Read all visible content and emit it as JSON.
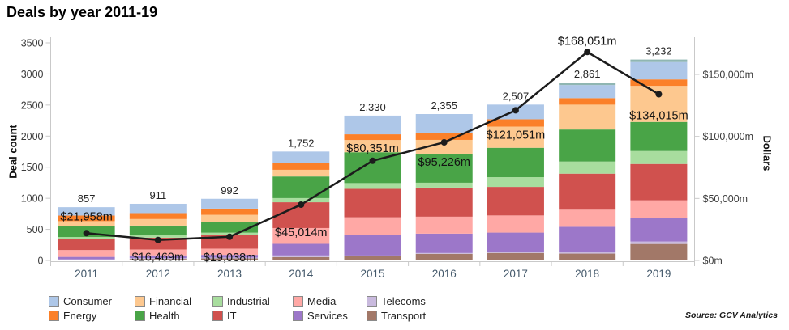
{
  "title": "Deals by year 2011-19",
  "source": "Source: GCV Analytics",
  "axes": {
    "left": {
      "label": "Deal count",
      "tick_values": [
        0,
        500,
        1000,
        1500,
        2000,
        2500,
        3000,
        3500
      ],
      "tick_labels": [
        "0",
        "500",
        "1000",
        "1500",
        "2000",
        "2500",
        "3000",
        "3500"
      ],
      "max": 3500
    },
    "right": {
      "label": "Dollars",
      "tick_values": [
        0,
        50000,
        100000,
        150000
      ],
      "tick_labels": [
        "$0m",
        "$50,000m",
        "$100,000m",
        "$150,000m"
      ],
      "max": 150000
    },
    "x": {
      "labels": [
        "2011",
        "2012",
        "2013",
        "2014",
        "2015",
        "2016",
        "2017",
        "2018",
        "2019"
      ]
    }
  },
  "legend": {
    "items": [
      {
        "label": "Consumer",
        "color": "#aec7e8"
      },
      {
        "label": "Energy",
        "color": "#fb8029"
      },
      {
        "label": "Financial",
        "color": "#fdc88f"
      },
      {
        "label": "Health",
        "color": "#49a447"
      },
      {
        "label": "Industrial",
        "color": "#a8dd9e"
      },
      {
        "label": "IT",
        "color": "#d0514e"
      },
      {
        "label": "Media",
        "color": "#ffa8a5"
      },
      {
        "label": "Services",
        "color": "#9c77c9"
      },
      {
        "label": "Telecoms",
        "color": "#c9bade"
      },
      {
        "label": "Transport",
        "color": "#a27868"
      }
    ]
  },
  "chart_data": {
    "type": "bar",
    "subtype": "stacked-bars-with-line-overlay",
    "title": "Deals by year 2011-19",
    "xlabel": "",
    "ylabel_left": "Deal count",
    "ylabel_right": "Dollars",
    "ylim_left": [
      0,
      3500
    ],
    "ylim_right": [
      0,
      150000
    ],
    "grid": false,
    "legend_position": "bottom",
    "categories": [
      "2011",
      "2012",
      "2013",
      "2014",
      "2015",
      "2016",
      "2017",
      "2018",
      "2019"
    ],
    "totals": [
      857,
      911,
      992,
      1752,
      2330,
      2355,
      2507,
      2861,
      3232
    ],
    "total_labels": [
      "857",
      "911",
      "992",
      "1,752",
      "2,330",
      "2,355",
      "2,507",
      "2,861",
      "3,232"
    ],
    "series": [
      {
        "name": "Transport",
        "color": "#a27868",
        "values": [
          10,
          24,
          32,
          53,
          66,
          106,
          120,
          110,
          265
        ]
      },
      {
        "name": "Telecoms",
        "color": "#c9bade",
        "values": [
          7,
          12,
          14,
          27,
          13,
          13,
          13,
          26,
          39
        ]
      },
      {
        "name": "Services",
        "color": "#9c77c9",
        "values": [
          40,
          45,
          43,
          187,
          327,
          312,
          315,
          405,
          377
        ]
      },
      {
        "name": "Media",
        "color": "#ffa8a5",
        "values": [
          110,
          95,
          100,
          254,
          288,
          273,
          276,
          275,
          286
        ]
      },
      {
        "name": "IT",
        "color": "#d0514e",
        "values": [
          175,
          190,
          215,
          415,
          458,
          468,
          459,
          580,
          585
        ]
      },
      {
        "name": "Industrial",
        "color": "#a8dd9e",
        "values": [
          35,
          40,
          43,
          67,
          92,
          78,
          157,
          195,
          208
        ]
      },
      {
        "name": "Health",
        "color": "#49a447",
        "values": [
          170,
          155,
          172,
          348,
          497,
          468,
          472,
          515,
          468
        ]
      },
      {
        "name": "Financial",
        "color": "#fdc88f",
        "values": [
          85,
          105,
          115,
          107,
          196,
          221,
          341,
          400,
          580
        ]
      },
      {
        "name": "Energy",
        "color": "#fb8029",
        "values": [
          90,
          95,
          100,
          107,
          92,
          117,
          118,
          105,
          104
        ]
      },
      {
        "name": "Consumer",
        "color": "#aec7e8",
        "values": [
          135,
          150,
          158,
          187,
          301,
          299,
          236,
          210,
          280
        ]
      },
      {
        "name": "unlabeled-top-segment",
        "color": "#8fb6b2",
        "values": [
          0,
          0,
          0,
          0,
          0,
          0,
          0,
          40,
          40
        ]
      }
    ],
    "line": {
      "name": "Dollars",
      "color": "#1c1c1c",
      "values": [
        21958,
        16469,
        19038,
        45014,
        80351,
        95226,
        121051,
        168051,
        134015
      ],
      "labels": [
        "$21,958m",
        "$16,469m",
        "$19,038m",
        "$45,014m",
        "$80,351m",
        "$95,226m",
        "$121,051m",
        "$168,051m",
        "$134,015m"
      ],
      "label_dy": [
        -21,
        21,
        25,
        34,
        -16,
        24,
        30,
        -14,
        26
      ]
    }
  }
}
